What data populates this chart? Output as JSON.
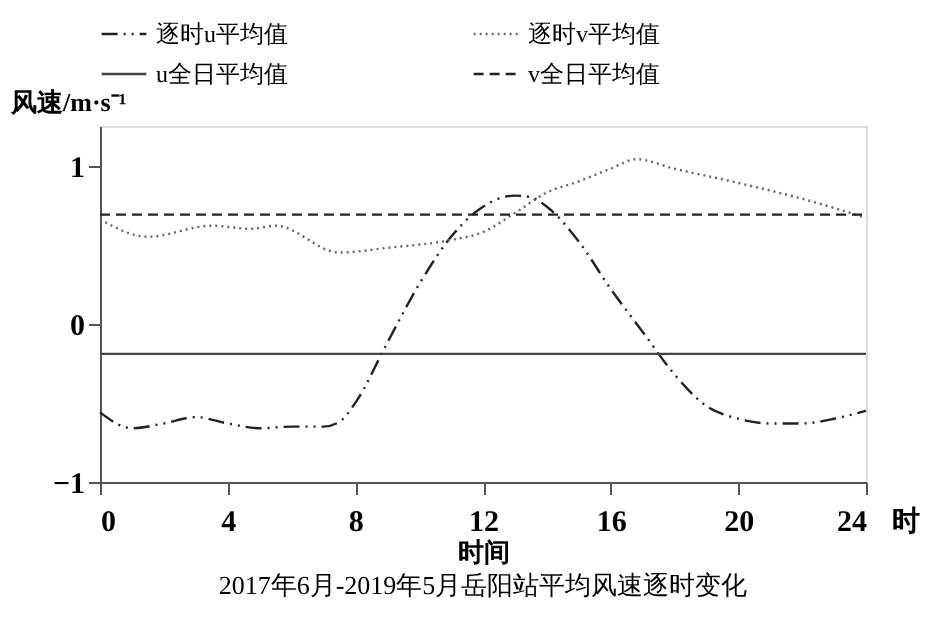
{
  "chart_data": {
    "type": "line",
    "title": "2017年6月-2019年5月岳阳站平均风速逐时变化",
    "xlabel": "时间",
    "ylabel": "风速/m·s⁻¹",
    "annotations": [
      "时"
    ],
    "xlim": [
      0,
      24
    ],
    "xticks": [
      0,
      4,
      8,
      12,
      16,
      20,
      24
    ],
    "ylim": [
      -1,
      1.25
    ],
    "yticks": [
      -1,
      0,
      1
    ],
    "grid": false,
    "legend": "top",
    "marker": "none",
    "series": [
      {
        "name": "逐时u平均值",
        "color": "#222222",
        "line_style": "dashdot",
        "x": [
          0,
          1,
          2,
          3,
          4,
          5,
          6,
          7,
          7.5,
          8,
          9,
          10,
          11,
          12,
          13,
          13.5,
          14,
          15,
          16,
          17,
          18,
          19,
          20,
          21,
          22,
          23,
          24
        ],
        "values": [
          -0.56,
          -0.66,
          -0.63,
          -0.59,
          -0.63,
          -0.66,
          -0.65,
          -0.65,
          -0.62,
          -0.5,
          -0.12,
          0.25,
          0.55,
          0.74,
          0.81,
          0.8,
          0.74,
          0.52,
          0.22,
          -0.05,
          -0.32,
          -0.52,
          -0.6,
          -0.63,
          -0.63,
          -0.6,
          -0.55
        ]
      },
      {
        "name": "逐时v平均值",
        "color": "#666666",
        "line_style": "dotted",
        "x": [
          0,
          1.5,
          3.5,
          4.7,
          5.5,
          7.5,
          9,
          11,
          12,
          13,
          14,
          15,
          16,
          16.8,
          18,
          20,
          22,
          24
        ],
        "values": [
          0.66,
          0.55,
          0.62,
          0.6,
          0.62,
          0.45,
          0.48,
          0.53,
          0.58,
          0.7,
          0.83,
          0.9,
          0.98,
          1.04,
          0.98,
          0.89,
          0.79,
          0.67
        ]
      },
      {
        "name": "u全日平均值",
        "color": "#444444",
        "line_style": "solid",
        "x": [
          0,
          24
        ],
        "values": [
          -0.19,
          -0.19
        ]
      },
      {
        "name": "v全日平均值",
        "color": "#222222",
        "line_style": "dashed",
        "x": [
          0,
          24
        ],
        "values": [
          0.69,
          0.69
        ]
      }
    ]
  }
}
